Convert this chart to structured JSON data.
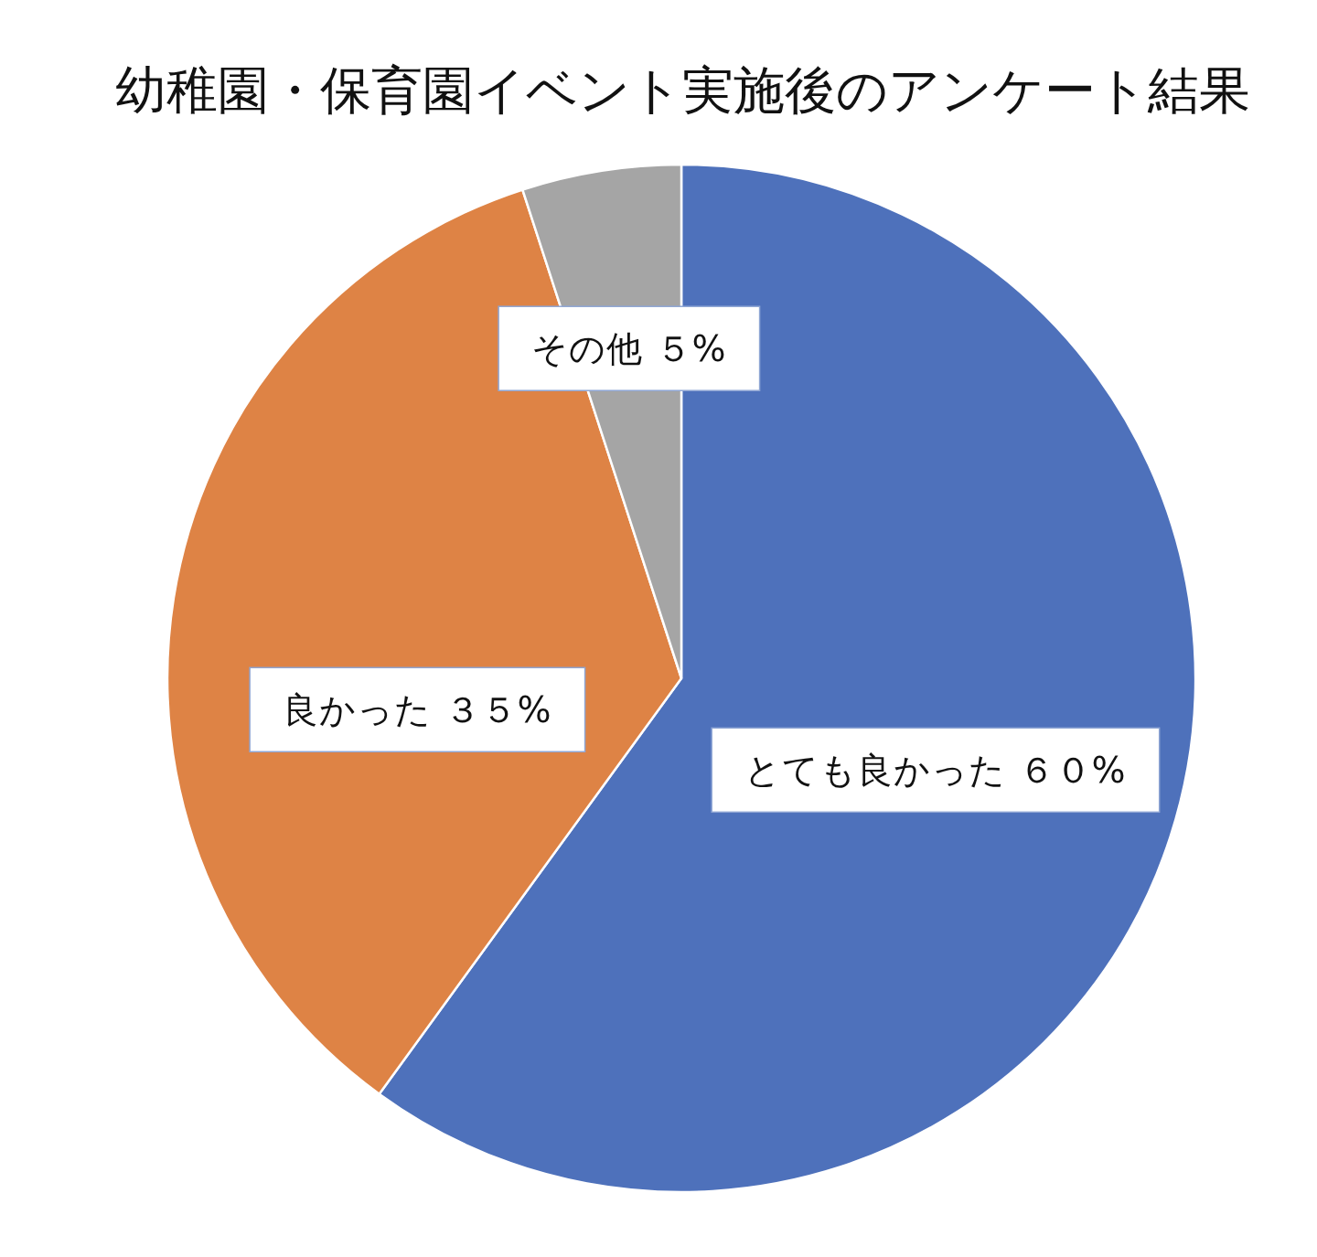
{
  "chart_data": {
    "type": "pie",
    "title": "幼稚園・保育園イベント実施後のアンケート結果",
    "categories": [
      "とても良かった",
      "良かった",
      "その他"
    ],
    "values": [
      60,
      35,
      5
    ],
    "colors": [
      "#4e71bb",
      "#de8345",
      "#a5a5a5"
    ],
    "value_labels": [
      "６０%",
      "３５%",
      "５%"
    ]
  }
}
